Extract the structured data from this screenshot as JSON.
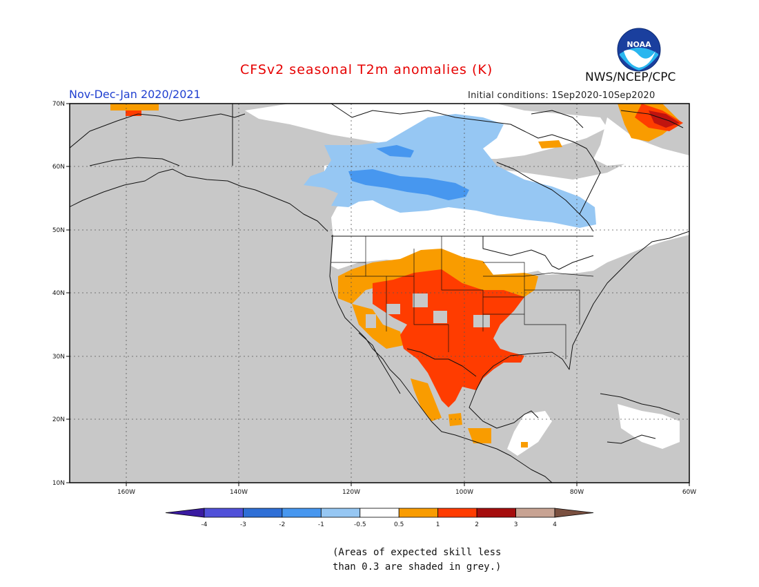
{
  "header": {
    "title": "CFSv2 seasonal T2m anomalies (K)",
    "season": "Nov-Dec-Jan 2020/2021",
    "initial_conditions": "Initial conditions: 1Sep2020-10Sep2020",
    "agency": "NWS/NCEP/CPC",
    "logo_text": "NOAA"
  },
  "map": {
    "region": "North America",
    "lon_range": [
      -170,
      -60
    ],
    "lat_range": [
      10,
      70
    ],
    "lat_ticks": [
      "70N",
      "60N",
      "50N",
      "40N",
      "30N",
      "20N",
      "10N"
    ],
    "lon_ticks": [
      "160W",
      "140W",
      "120W",
      "100W",
      "80W",
      "60W"
    ],
    "grey_color": "#c8c8c8",
    "gridlines": "dotted"
  },
  "legend": {
    "labels": [
      "-4",
      "-3",
      "-2",
      "-1",
      "-0.5",
      "0.5",
      "1",
      "2",
      "3",
      "4"
    ],
    "colors": [
      "#3a1ba1",
      "#5050d9",
      "#2f6fd6",
      "#4797ef",
      "#96c7f3",
      "#ffffff",
      "#f99c00",
      "#ff3c00",
      "#a50d0d",
      "#c8a393",
      "#7a5040"
    ]
  },
  "note": {
    "line1": "(Areas of expected skill less",
    "line2": "than 0.3 are shaded in grey.)"
  }
}
